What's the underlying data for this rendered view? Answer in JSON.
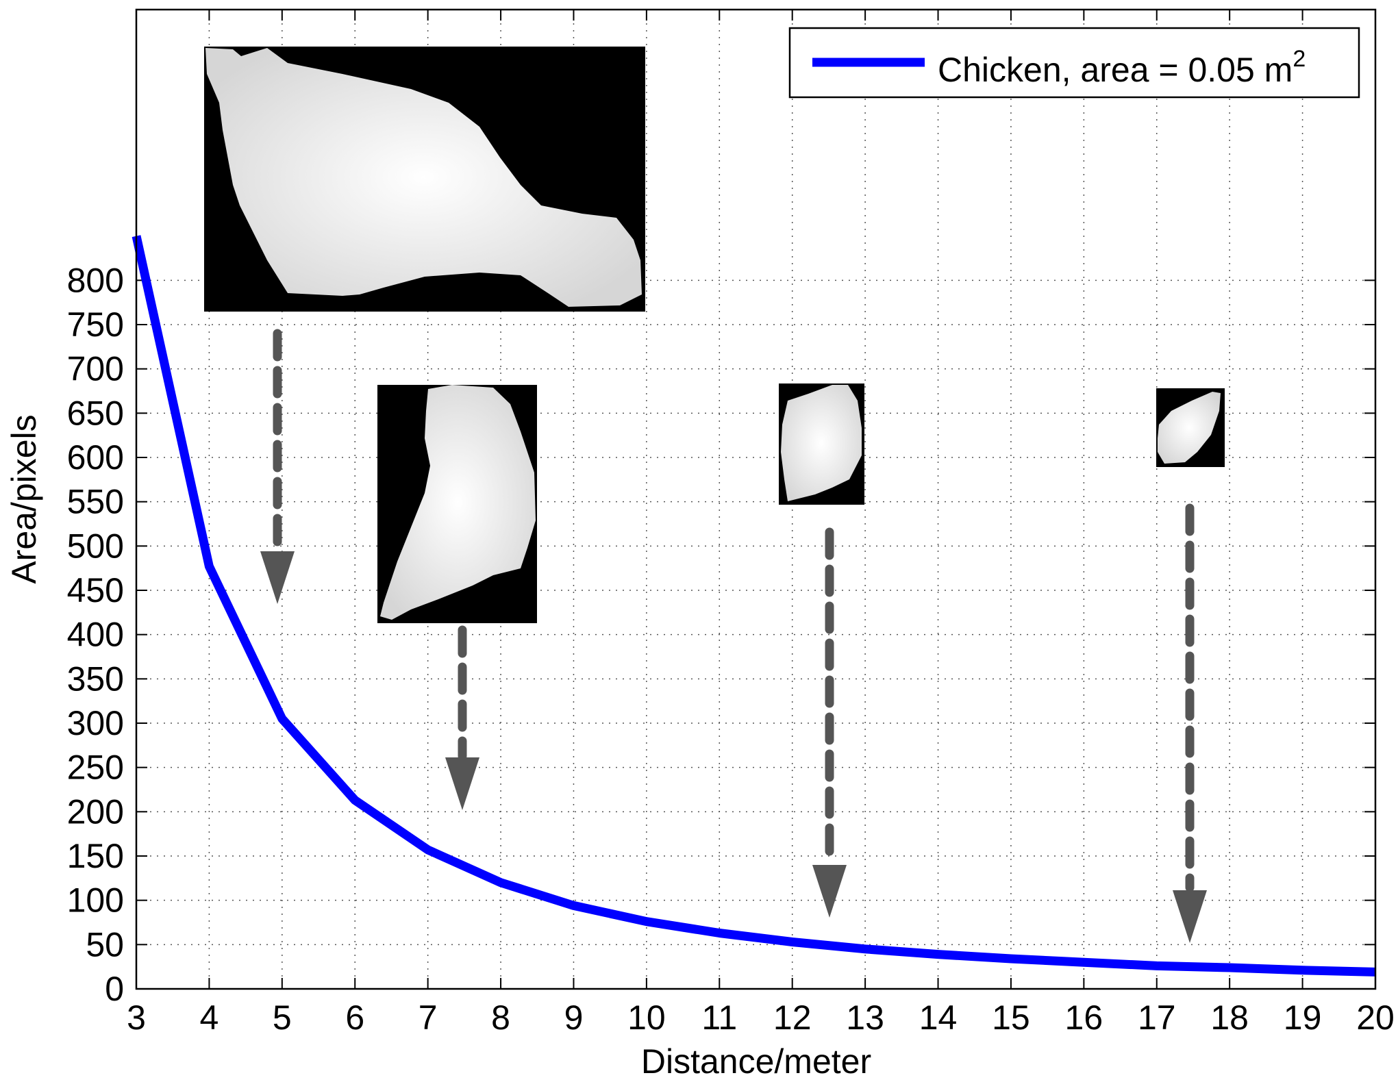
{
  "chart_data": {
    "type": "line",
    "xlabel": "Distance/meter",
    "ylabel": "Area/pixels",
    "xlim": [
      3,
      20
    ],
    "ylim": [
      0,
      850
    ],
    "xticks": [
      3,
      4,
      5,
      6,
      7,
      8,
      9,
      10,
      11,
      12,
      13,
      14,
      15,
      16,
      17,
      18,
      19,
      20
    ],
    "yticks": [
      0,
      50,
      100,
      150,
      200,
      250,
      300,
      350,
      400,
      450,
      500,
      550,
      600,
      650,
      700,
      750,
      800
    ],
    "grid": true,
    "legend_position": "top-right",
    "series": [
      {
        "name": "Chicken, area = 0.05 m",
        "name_superscript": "2",
        "color": "#0000ff",
        "x": [
          3,
          4,
          5,
          6,
          7,
          8,
          9,
          10,
          11,
          12,
          13,
          14,
          15,
          16,
          17,
          18,
          19,
          20
        ],
        "y": [
          850,
          477,
          305,
          213,
          157,
          120,
          94,
          76,
          63,
          53,
          45,
          39,
          34,
          30,
          26,
          24,
          21,
          19
        ]
      }
    ],
    "annotations": [
      {
        "kind": "silhouette-thumbnail",
        "points_to_x": 5,
        "points_to_y": 305
      },
      {
        "kind": "silhouette-thumbnail",
        "points_to_x": 7.5,
        "points_to_y": 138
      },
      {
        "kind": "silhouette-thumbnail",
        "points_to_x": 12.5,
        "points_to_y": 49
      },
      {
        "kind": "silhouette-thumbnail",
        "points_to_x": 17.5,
        "points_to_y": 25
      }
    ],
    "arrow_color": "#555555",
    "thumbnail_background": "#000000",
    "silhouette_color": "#e4e4e4"
  }
}
